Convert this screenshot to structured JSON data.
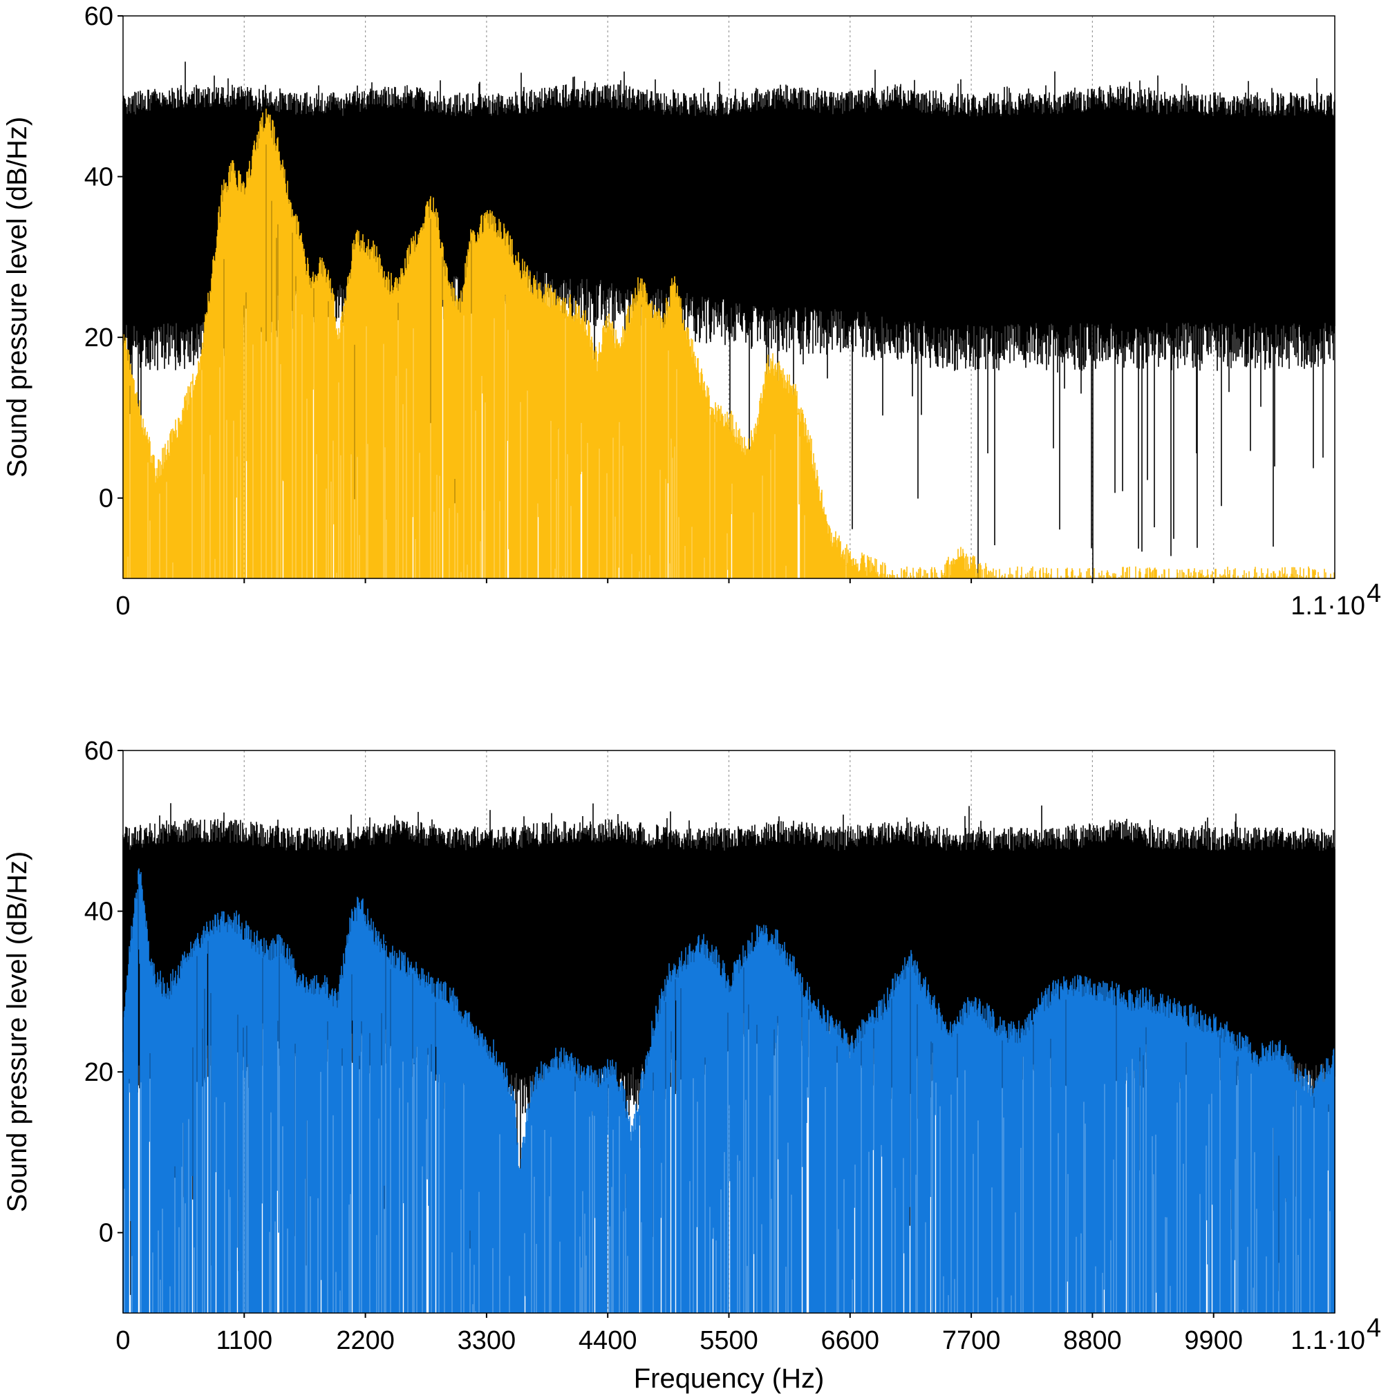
{
  "chart_data": [
    {
      "type": "area",
      "panel": "top",
      "ylabel": "Sound pressure level (dB/Hz)",
      "xlabel": "",
      "xlim": [
        0,
        11000
      ],
      "ylim": [
        -10,
        60
      ],
      "yticks": [
        0,
        20,
        40,
        60
      ],
      "ytick_labels": [
        "0",
        "20",
        "40",
        "60"
      ],
      "xticks": [
        0,
        11000
      ],
      "xtick_labels": [
        "0",
        "1.1·10"
      ],
      "xtick_exponent": "4",
      "xgrid": [
        1100,
        2200,
        3300,
        4400,
        5500,
        6600,
        7700,
        8800,
        9900
      ],
      "grid": "vertical dotted",
      "series": [
        {
          "color": "#000000",
          "x": [
            0,
            500,
            1000,
            1500,
            2000,
            2500,
            3000,
            3500,
            4000,
            4500,
            5000,
            5500,
            6000,
            6500,
            7000,
            7500,
            8000,
            8500,
            9000,
            9500,
            10000,
            10500,
            11000
          ],
          "upper": [
            49,
            50,
            50,
            49,
            49,
            50,
            49,
            49,
            50,
            50,
            49,
            49,
            50,
            49,
            50,
            49,
            49,
            49,
            50,
            49,
            49,
            49,
            49
          ],
          "lower": [
            20,
            20,
            22,
            24,
            25,
            25,
            26,
            27,
            26,
            25,
            24,
            23,
            22,
            22,
            21,
            20,
            20,
            20,
            20,
            20,
            20,
            20,
            20
          ]
        },
        {
          "color": "#FDBE10",
          "x": [
            0,
            150,
            300,
            500,
            700,
            800,
            900,
            1000,
            1100,
            1200,
            1300,
            1400,
            1500,
            1600,
            1700,
            1800,
            1900,
            1950,
            2000,
            2100,
            2200,
            2300,
            2400,
            2500,
            2600,
            2700,
            2800,
            2850,
            2950,
            3050,
            3150,
            3300,
            3450,
            3600,
            3750,
            3900,
            4050,
            4200,
            4300,
            4400,
            4500,
            4600,
            4700,
            4800,
            4900,
            5000,
            5100,
            5200,
            5350,
            5500,
            5650,
            5750,
            5850,
            5950,
            6100,
            6250,
            6400,
            6550,
            6700,
            6850,
            7000,
            7200,
            7400,
            7600,
            7750,
            7900,
            8100,
            8400,
            8800,
            9200,
            9600,
            10000,
            10500,
            11000
          ],
          "peak": [
            20,
            11,
            3,
            9,
            17,
            27,
            38,
            41,
            38,
            44,
            48,
            44,
            38,
            33,
            27,
            29,
            26,
            20,
            23,
            32,
            32,
            30,
            27,
            26,
            31,
            33,
            37,
            35,
            27,
            23,
            32,
            35,
            33,
            29,
            26,
            25,
            24,
            22,
            17,
            22,
            19,
            23,
            27,
            24,
            22,
            27,
            22,
            17,
            11,
            10,
            6,
            8,
            17,
            16,
            13,
            6,
            -4,
            -7,
            -8,
            -9,
            -10,
            -10,
            -10,
            -7,
            -9,
            -10,
            -10,
            -10,
            -10,
            -10,
            -10,
            -10,
            -10,
            -10
          ],
          "floor": [
            -10,
            -10,
            -10,
            -10,
            -10,
            -10,
            -10,
            -10,
            -10,
            -10,
            -10,
            -10,
            -10,
            -10,
            -10,
            -10,
            -10,
            -10,
            -10,
            -10,
            -10,
            -10,
            -10,
            -10,
            -10,
            -10,
            -10,
            -10,
            -10,
            -10,
            -10,
            -10,
            -10,
            -10,
            -10,
            -10,
            -10,
            -10,
            -10,
            -10,
            -10,
            -10,
            -10,
            -10,
            -10,
            -10,
            -10,
            -10,
            -10,
            -10,
            -10,
            -10,
            -10,
            -10,
            -10,
            -10,
            -10,
            -10,
            -10,
            -10,
            -10,
            -10,
            -10,
            -10,
            -10,
            -10,
            -10,
            -10,
            -10,
            -10,
            -10,
            -10,
            -10,
            -10
          ]
        }
      ]
    },
    {
      "type": "area",
      "panel": "bottom",
      "ylabel": "Sound pressure level (dB/Hz)",
      "xlabel": "Frequency (Hz)",
      "xlim": [
        0,
        11000
      ],
      "ylim": [
        -10,
        60
      ],
      "yticks": [
        0,
        20,
        40,
        60
      ],
      "ytick_labels": [
        "0",
        "20",
        "40",
        "60"
      ],
      "xticks": [
        0,
        1100,
        2200,
        3300,
        4400,
        5500,
        6600,
        7700,
        8800,
        9900,
        11000
      ],
      "xtick_labels": [
        "0",
        "1100",
        "2200",
        "3300",
        "4400",
        "5500",
        "6600",
        "7700",
        "8800",
        "9900",
        "1.1·10"
      ],
      "xtick_exponent": "4",
      "xgrid": [
        1100,
        2200,
        3300,
        4400,
        5500,
        6600,
        7700,
        8800,
        9900
      ],
      "grid": "vertical dotted",
      "series": [
        {
          "color": "#000000",
          "x": [
            0,
            500,
            1000,
            1500,
            2000,
            2500,
            3000,
            3500,
            4000,
            4500,
            5000,
            5500,
            6000,
            6500,
            7000,
            7500,
            8000,
            8500,
            9000,
            9500,
            10000,
            10500,
            11000
          ],
          "upper": [
            49,
            50,
            50,
            49,
            49,
            50,
            49,
            49,
            50,
            50,
            49,
            49,
            50,
            49,
            50,
            49,
            49,
            49,
            50,
            49,
            49,
            49,
            49
          ],
          "lower": [
            21,
            21,
            24,
            25,
            24,
            24,
            22,
            18,
            19,
            18,
            21,
            26,
            26,
            24,
            21,
            21,
            22,
            22,
            22,
            22,
            22,
            20,
            19
          ]
        },
        {
          "color": "#1479DC",
          "x": [
            0,
            100,
            150,
            250,
            400,
            600,
            800,
            1000,
            1150,
            1300,
            1450,
            1600,
            1800,
            1950,
            2050,
            2150,
            2250,
            2400,
            2600,
            2800,
            3000,
            3200,
            3400,
            3550,
            3600,
            3700,
            3850,
            4000,
            4150,
            4300,
            4450,
            4550,
            4620,
            4700,
            4800,
            4950,
            5100,
            5250,
            5400,
            5500,
            5600,
            5750,
            5900,
            6050,
            6200,
            6350,
            6500,
            6600,
            6750,
            6900,
            7050,
            7150,
            7300,
            7450,
            7550,
            7700,
            7850,
            8000,
            8150,
            8300,
            8450,
            8650,
            8800,
            8950,
            9100,
            9300,
            9500,
            9700,
            9900,
            10100,
            10300,
            10500,
            10650,
            10800,
            11000
          ],
          "peak": [
            27,
            40,
            45,
            33,
            30,
            35,
            38,
            39,
            37,
            35,
            36,
            31,
            31,
            29,
            38,
            41,
            38,
            35,
            33,
            31,
            29,
            25,
            22,
            17,
            7,
            18,
            21,
            22,
            20,
            19,
            21,
            17,
            12,
            18,
            25,
            32,
            34,
            36,
            34,
            31,
            34,
            37,
            37,
            34,
            30,
            27,
            25,
            23,
            26,
            28,
            32,
            34,
            30,
            26,
            25,
            29,
            27,
            25,
            25,
            28,
            30,
            31,
            30,
            30,
            29,
            29,
            28,
            27,
            26,
            24,
            22,
            23,
            20,
            18,
            22
          ],
          "floor": [
            -10,
            -10,
            -10,
            -10,
            -10,
            -10,
            -10,
            -10,
            -10,
            -10,
            -10,
            -10,
            -10,
            -10,
            -10,
            -10,
            -10,
            -10,
            -10,
            -10,
            -10,
            -10,
            -10,
            -10,
            -10,
            -10,
            -10,
            -10,
            -10,
            -10,
            -10,
            -10,
            -10,
            -10,
            -10,
            -10,
            -10,
            -10,
            -10,
            -10,
            -10,
            -10,
            -10,
            -10,
            -10,
            -10,
            -10,
            -10,
            -10,
            -10,
            -10,
            -10,
            -10,
            -10,
            -10,
            -10,
            -10,
            -10,
            -10,
            -10,
            -10,
            -10,
            -10,
            -10,
            -10,
            -10,
            -10,
            -10,
            -10,
            -10,
            -10,
            -10,
            -10,
            -10,
            -10
          ]
        }
      ]
    }
  ]
}
